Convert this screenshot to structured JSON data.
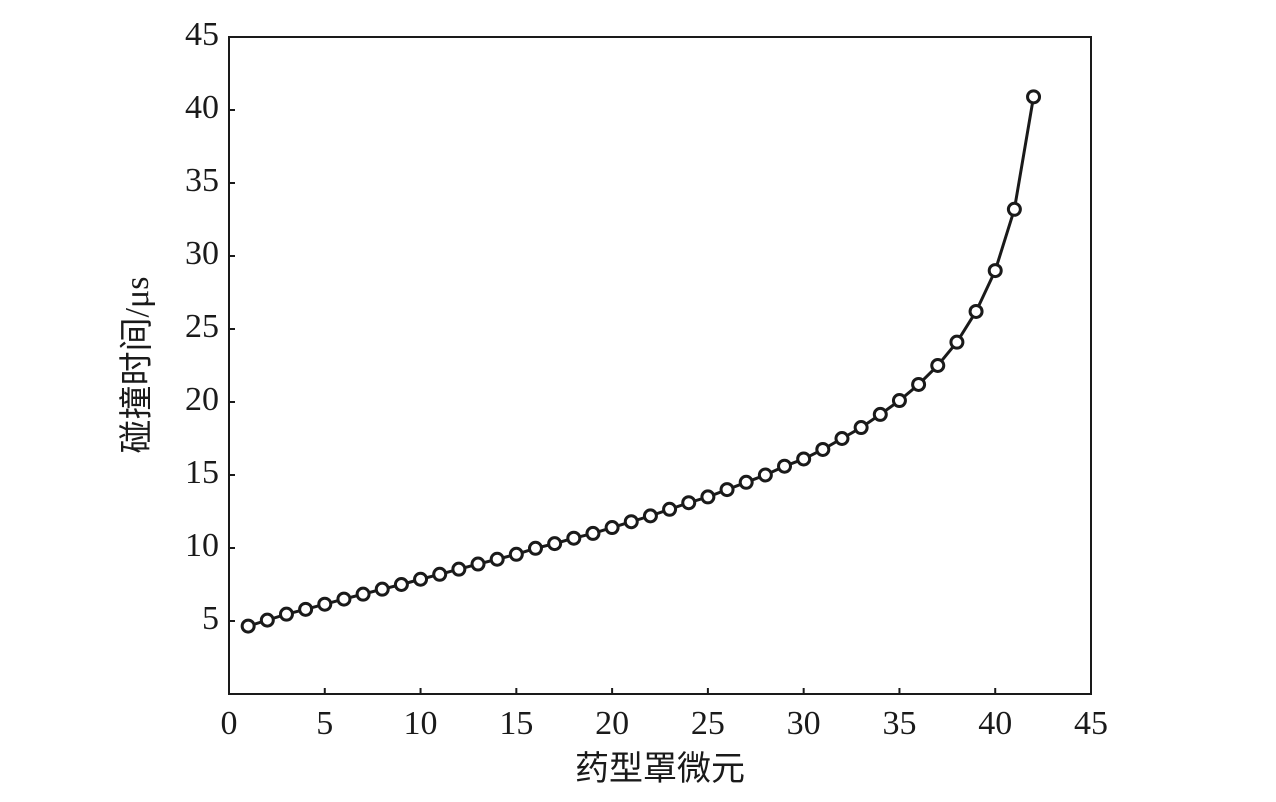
{
  "chart_data": {
    "type": "line",
    "x_label": "药型罩微元",
    "y_label": "碰撞时间/μs",
    "x": [
      1,
      2,
      3,
      4,
      5,
      6,
      7,
      8,
      9,
      10,
      11,
      12,
      13,
      14,
      15,
      16,
      17,
      18,
      19,
      20,
      21,
      22,
      23,
      24,
      25,
      26,
      27,
      28,
      29,
      30,
      31,
      32,
      33,
      34,
      35,
      36,
      37,
      38,
      39,
      40,
      41,
      42
    ],
    "series": [
      {
        "color": "#1a1a1a",
        "values": [
          4.65,
          5.06,
          5.47,
          5.8,
          6.15,
          6.5,
          6.84,
          7.18,
          7.5,
          7.86,
          8.2,
          8.55,
          8.9,
          9.23,
          9.57,
          9.98,
          10.3,
          10.67,
          11,
          11.4,
          11.8,
          12.2,
          12.65,
          13.1,
          13.5,
          14,
          14.5,
          15,
          15.6,
          16.1,
          16.75,
          17.5,
          18.25,
          19.15,
          20.1,
          21.2,
          22.5,
          24.1,
          26.2,
          29,
          33.2,
          40.9
        ]
      }
    ],
    "xlim": [
      0,
      45
    ],
    "xticks": [
      0,
      5,
      10,
      15,
      20,
      25,
      30,
      35,
      40,
      45
    ],
    "ylim": [
      0,
      45
    ],
    "yticks": [
      5,
      10,
      15,
      20,
      25,
      30,
      35,
      40,
      45
    ]
  }
}
